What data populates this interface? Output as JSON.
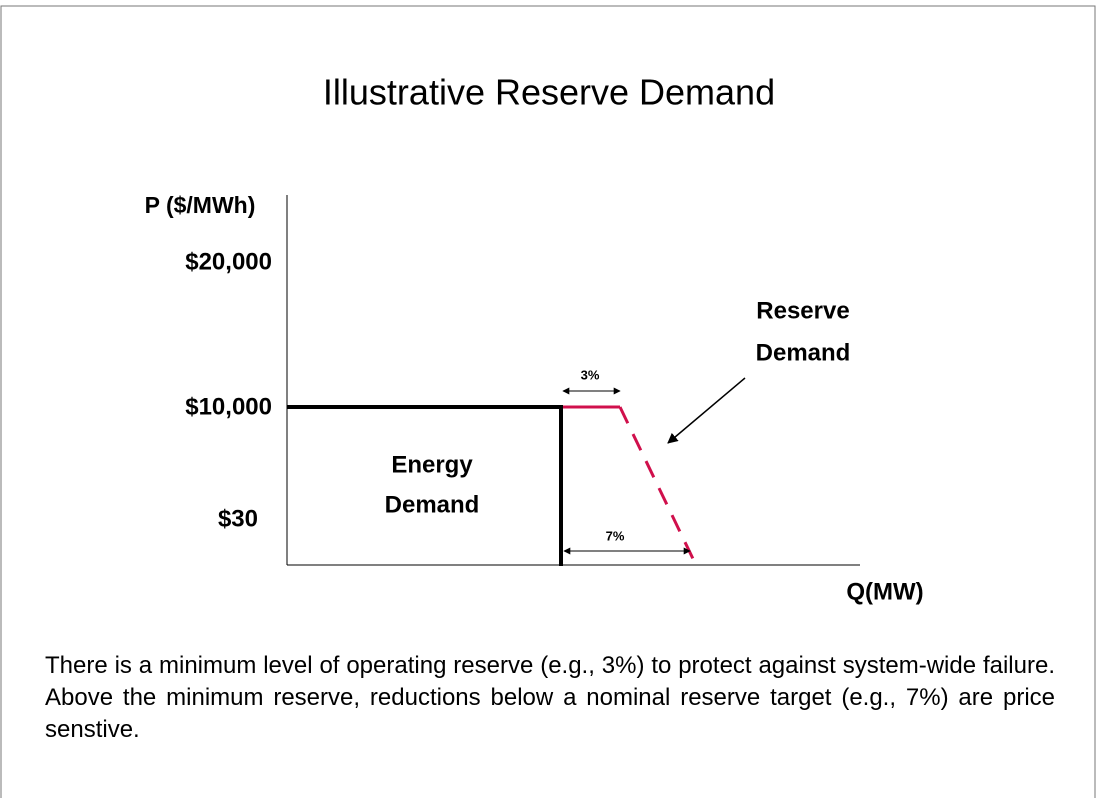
{
  "title": "Illustrative Reserve Demand",
  "diagram": {
    "y_axis_label": "P ($/MWh)",
    "y_labels": [
      "$20,000",
      "$10,000",
      "$30"
    ],
    "x_axis_label": "Q(MW)",
    "energy_label": [
      "Energy",
      "Demand"
    ],
    "reserve_label": [
      "Reserve",
      "Demand"
    ],
    "min_reserve": "3%",
    "target_reserve": "7%"
  },
  "caption": "There is a minimum level of operating reserve (e.g., 3%) to protect against system-wide failure. Above the minimum reserve, reductions below a nominal reserve target (e.g., 7%) are price senstive."
}
